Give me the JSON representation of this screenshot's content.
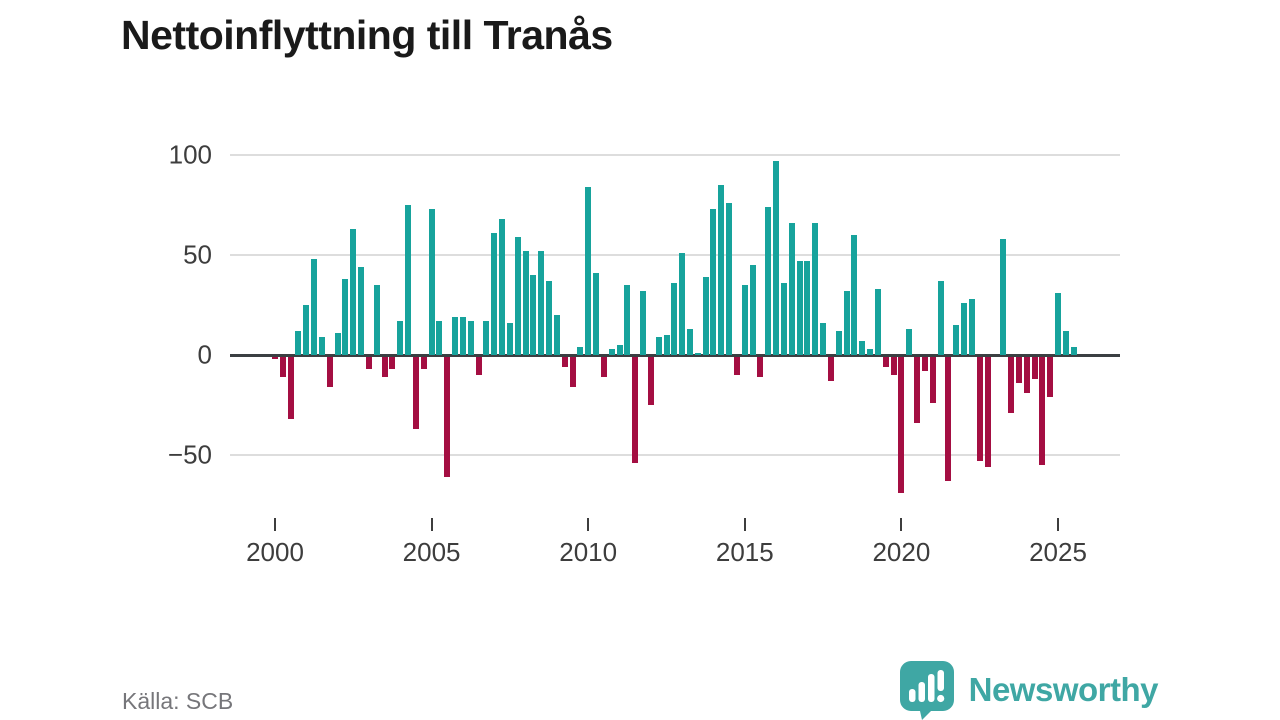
{
  "title": "Nettoinflyttning till Tranås",
  "source": "Källa: SCB",
  "branding": {
    "logo_text": "Newsworthy",
    "logo_icon": "bar-chart-speech-bubble-icon"
  },
  "colors": {
    "positive_bar": "#17a39c",
    "negative_bar": "#a40e42",
    "grid": "#dddddd",
    "zero_line": "#3b3f42",
    "tick": "#3d3d3d",
    "title_text": "#1a1a1a",
    "axis_text": "#3d3d3d",
    "source_text": "#76767a",
    "brand": "#3fa7a4"
  },
  "chart_data": {
    "type": "bar",
    "title": "Nettoinflyttning till Tranås",
    "xlabel": "",
    "ylabel": "",
    "frequency": "quarterly",
    "x_start": "2000 Q1",
    "x_end": "2025 Q3",
    "x_tick_labels": [
      "2000",
      "2005",
      "2010",
      "2015",
      "2020",
      "2025"
    ],
    "y_ticks": [
      100,
      50,
      0,
      -50
    ],
    "y_tick_labels": [
      "100",
      "50",
      "0",
      "−50"
    ],
    "ylim": [
      -75,
      105
    ],
    "grid": "horizontal",
    "legend": "none",
    "series": [
      {
        "name": "Nettoinflyttning",
        "values": [
          -1,
          -10,
          -31,
          12,
          25,
          48,
          9,
          -15,
          11,
          38,
          63,
          44,
          -6,
          35,
          -10,
          -6,
          17,
          75,
          -36,
          -6,
          73,
          17,
          -60,
          19,
          19,
          17,
          -9,
          17,
          61,
          68,
          16,
          59,
          52,
          40,
          52,
          37,
          20,
          -5,
          -15,
          4,
          84,
          41,
          -10,
          3,
          5,
          35,
          -53,
          32,
          -24,
          9,
          10,
          36,
          51,
          13,
          1,
          39,
          73,
          85,
          76,
          -9,
          35,
          45,
          -10,
          74,
          97,
          36,
          66,
          47,
          47,
          66,
          16,
          -12,
          12,
          32,
          60,
          7,
          3,
          33,
          -5,
          -9,
          -68,
          13,
          -33,
          -7,
          -23,
          37,
          -62,
          15,
          26,
          28,
          -52,
          -55,
          0,
          58,
          -28,
          -13,
          -18,
          -11,
          -54,
          -20,
          31,
          12,
          4
        ]
      }
    ]
  }
}
